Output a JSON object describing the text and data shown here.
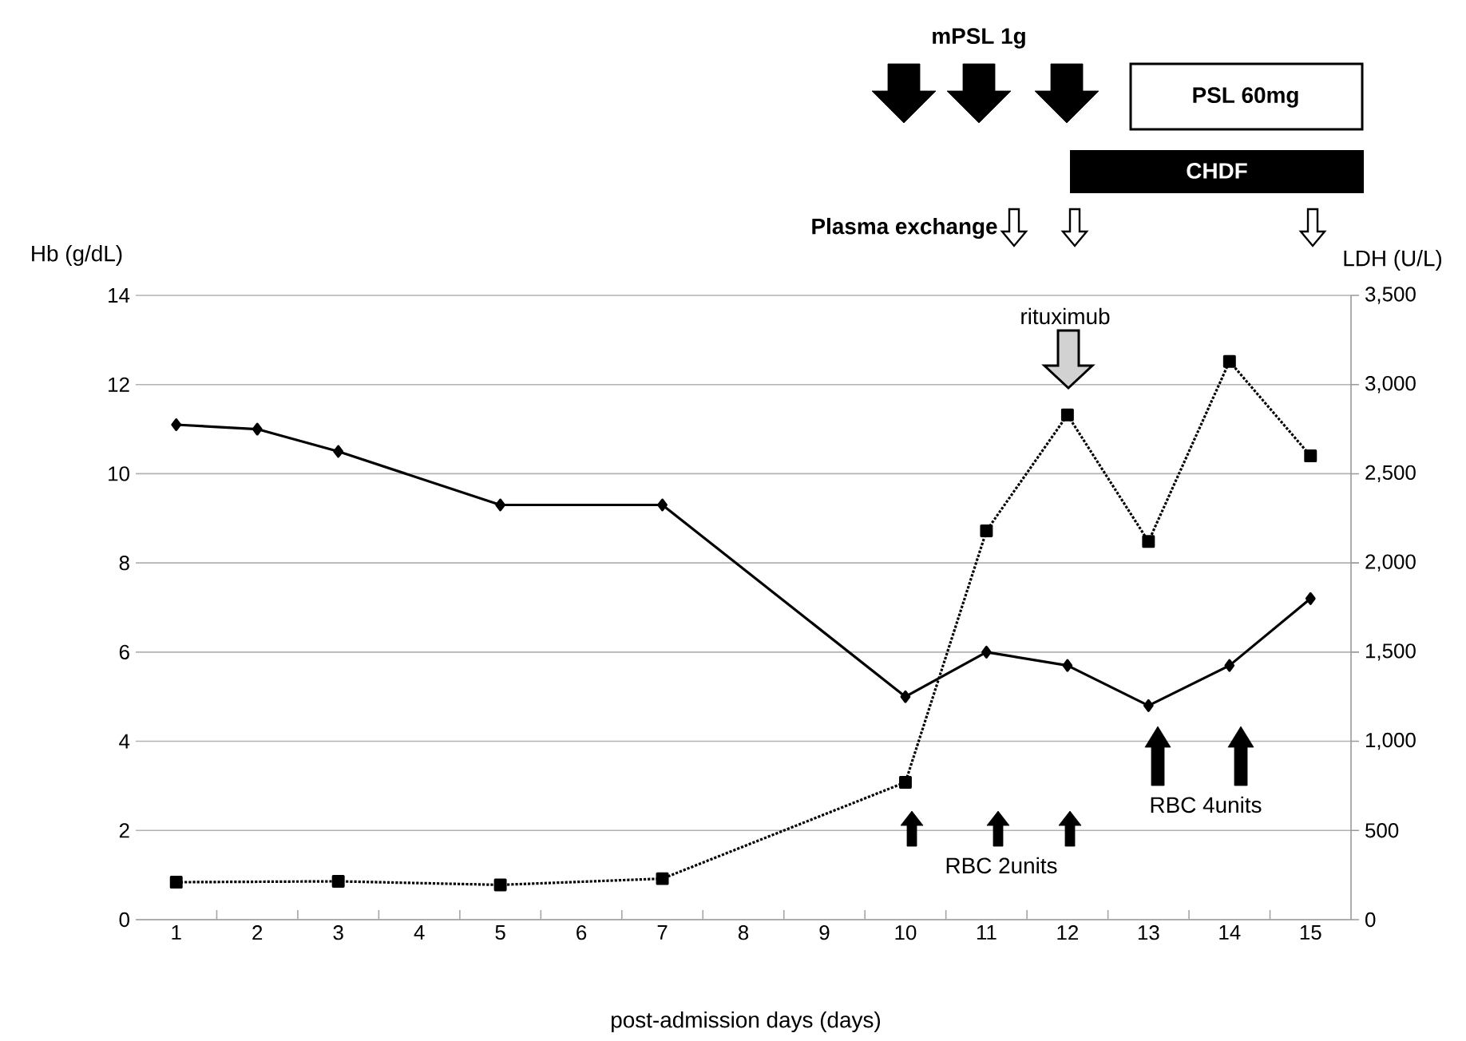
{
  "chart_data": {
    "type": "line",
    "xlabel": "post-admission days (days)",
    "ylabel": "Hb (g/dL)",
    "y2label": "LDH (U/L)",
    "categories": [
      "1",
      "2",
      "3",
      "4",
      "5",
      "6",
      "7",
      "8",
      "9",
      "10",
      "11",
      "12",
      "13",
      "14",
      "15"
    ],
    "series": [
      {
        "color": "#000000",
        "marker": "diamond",
        "line_style": "solid",
        "values": [
          11.1,
          11.0,
          10.5,
          null,
          9.3,
          null,
          9.3,
          null,
          null,
          5.0,
          6.0,
          5.7,
          4.8,
          5.7,
          7.2
        ]
      },
      {
        "color": "#000000",
        "marker": "square",
        "line_style": "dotted",
        "axis": "y2",
        "values": [
          210,
          null,
          215,
          null,
          195,
          null,
          230,
          null,
          null,
          770,
          2180,
          2830,
          2120,
          3130,
          2600
        ]
      }
    ],
    "ylim": [
      0,
      14
    ],
    "yticks": [
      0,
      2,
      4,
      6,
      8,
      10,
      12,
      14
    ],
    "y2lim": [
      0,
      3500
    ],
    "y2ticks": [
      0,
      500,
      {
        "value": 1000,
        "label": "1,000"
      },
      {
        "value": 1500,
        "label": "1,500"
      },
      {
        "value": 2000,
        "label": "2,000"
      },
      {
        "value": 2500,
        "label": "2,500"
      },
      {
        "value": 3000,
        "label": "3,000"
      },
      {
        "value": 3500,
        "label": "3,500"
      }
    ],
    "grid": "y",
    "annotations": [
      "mPSL 1g",
      "PSL 60mg",
      "CHDF",
      "Plasma exchange",
      "rituximub",
      "RBC 2units",
      "RBC 4units"
    ]
  }
}
